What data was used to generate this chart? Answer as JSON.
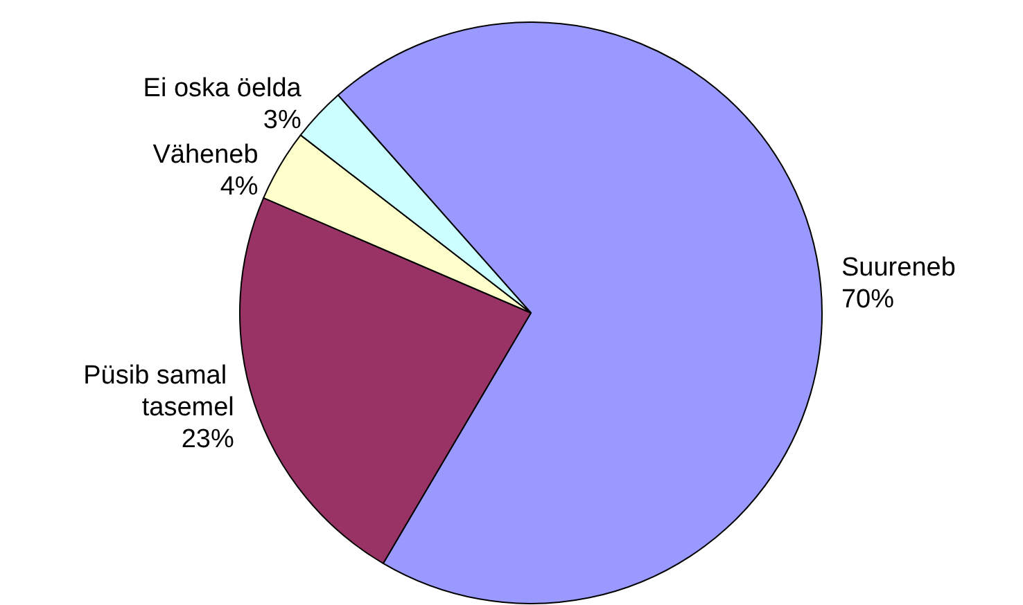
{
  "chart_data": {
    "type": "pie",
    "categories": [
      "Suureneb",
      "Püsib samal tasemel",
      "Väheneb",
      "Ei oska öelda"
    ],
    "values": [
      70,
      23,
      4,
      3
    ],
    "value_labels": [
      "70%",
      "23%",
      "4%",
      "3%"
    ],
    "colors": [
      "#9999ff",
      "#993366",
      "#ffffcc",
      "#ccffff"
    ],
    "legend": false
  }
}
